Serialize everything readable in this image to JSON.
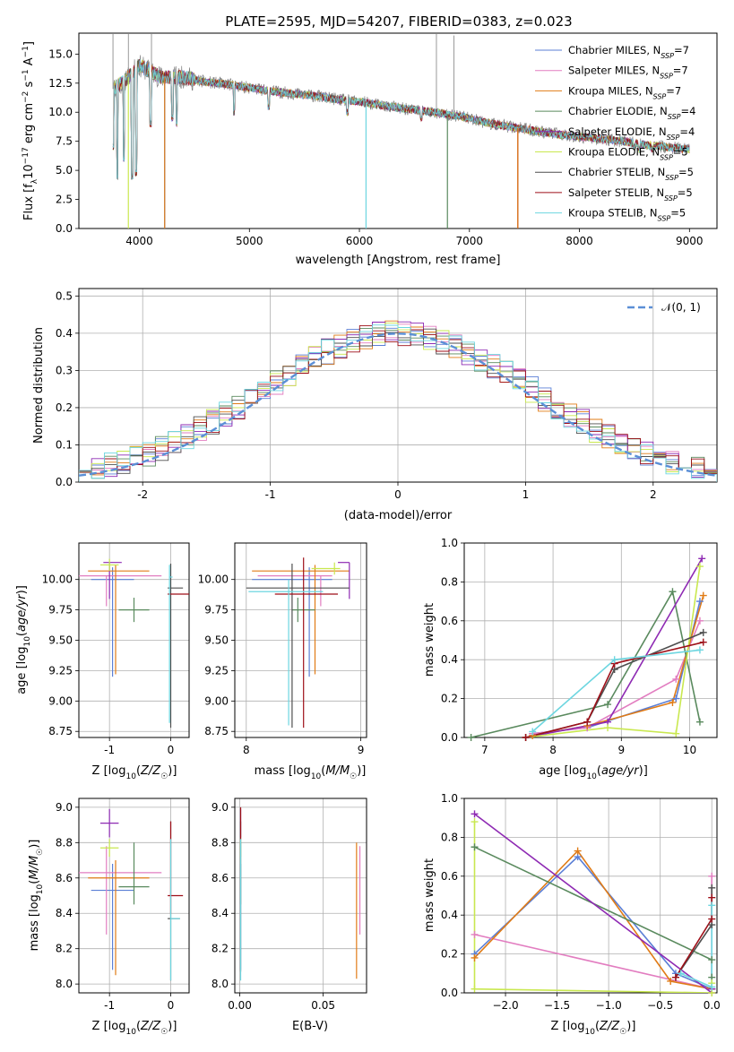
{
  "figure": {
    "title": "PLATE=2595, MJD=54207, FIBERID=0383, z=0.023"
  },
  "model_colors": [
    "#5b7fd6",
    "#e27dc0",
    "#e07b16",
    "#5a8a5e",
    "#8e2ab3",
    "#c9e84f",
    "#4f4f4f",
    "#9e0f18",
    "#6dd6e0"
  ],
  "legend": [
    {
      "base": "Chabrier MILES, N",
      "sub": "SSP",
      "eq": "=7"
    },
    {
      "base": "Salpeter MILES, N",
      "sub": "SSP",
      "eq": "=7"
    },
    {
      "base": "Kroupa MILES, N",
      "sub": "SSP",
      "eq": "=7"
    },
    {
      "base": "Chabrier ELODIE, N",
      "sub": "SSP",
      "eq": "=4"
    },
    {
      "base": "Salpeter ELODIE, N",
      "sub": "SSP",
      "eq": "=4"
    },
    {
      "base": "Kroupa ELODIE, N",
      "sub": "SSP",
      "eq": "=5"
    },
    {
      "base": "Chabrier STELIB, N",
      "sub": "SSP",
      "eq": "=5"
    },
    {
      "base": "Salpeter STELIB, N",
      "sub": "SSP",
      "eq": "=5"
    },
    {
      "base": "Kroupa STELIB, N",
      "sub": "SSP",
      "eq": "=5"
    }
  ],
  "chart_data": [
    {
      "id": "spectrum",
      "type": "line",
      "xlabel": "wavelength [Angstrom, rest frame]",
      "ylabel": "Flux [f_λ 10^-17 erg cm^-2 s^-1 A^-1]",
      "xlim": [
        3450,
        9250
      ],
      "ylim": [
        0,
        16.8
      ],
      "xticks": [
        4000,
        5000,
        6000,
        7000,
        8000,
        9000
      ],
      "yticks": [
        "0.0",
        "2.5",
        "5.0",
        "7.5",
        "10.0",
        "12.5",
        "15.0"
      ],
      "data_color": "#808080",
      "continuum_points": [
        [
          3760,
          12.0
        ],
        [
          3900,
          13.0
        ],
        [
          4000,
          14.0
        ],
        [
          4200,
          13.0
        ],
        [
          4400,
          13.0
        ],
        [
          4600,
          12.6
        ],
        [
          4800,
          12.4
        ],
        [
          5000,
          12.1
        ],
        [
          5200,
          11.8
        ],
        [
          5400,
          11.6
        ],
        [
          5600,
          11.4
        ],
        [
          5800,
          11.1
        ],
        [
          6000,
          10.9
        ],
        [
          6200,
          10.6
        ],
        [
          6400,
          10.3
        ],
        [
          6600,
          10.1
        ],
        [
          6800,
          9.8
        ],
        [
          7000,
          9.5
        ],
        [
          7200,
          9.0
        ],
        [
          7400,
          8.7
        ],
        [
          7600,
          8.4
        ],
        [
          7800,
          8.1
        ],
        [
          8000,
          7.9
        ],
        [
          8200,
          7.7
        ],
        [
          8400,
          7.5
        ],
        [
          8600,
          7.2
        ],
        [
          8800,
          7.0
        ],
        [
          9000,
          6.8
        ]
      ],
      "absorption_features": [
        [
          3760,
          7.0
        ],
        [
          3800,
          4.5
        ],
        [
          3860,
          6.0
        ],
        [
          3934,
          4.5
        ],
        [
          3970,
          4.8
        ],
        [
          4102,
          9.0
        ],
        [
          4300,
          9.5
        ],
        [
          4340,
          9.0
        ],
        [
          4861,
          10.0
        ],
        [
          5175,
          10.5
        ],
        [
          5890,
          10.0
        ],
        [
          6563,
          9.5
        ],
        [
          8500,
          7.0
        ],
        [
          8542,
          6.8
        ],
        [
          8662,
          6.8
        ]
      ],
      "emission_spikes": [
        [
          3760,
          16.8
        ],
        [
          3900,
          16.8
        ],
        [
          4110,
          16.8
        ],
        [
          6700,
          16.8
        ],
        [
          6860,
          16.6
        ]
      ],
      "model_drops": [
        [
          0,
          4230,
          0.0
        ],
        [
          2,
          4230,
          0.0
        ],
        [
          5,
          3900,
          0.0
        ],
        [
          8,
          6060,
          0.0
        ],
        [
          3,
          6800,
          0.0
        ],
        [
          7,
          7440,
          0.0
        ],
        [
          2,
          7440,
          0.0
        ]
      ],
      "legend_location": "upper right"
    },
    {
      "id": "residuals",
      "type": "histogram",
      "xlabel": "(data-model)/error",
      "ylabel": "Normed distribution",
      "xlim": [
        -2.5,
        2.5
      ],
      "ylim": [
        0,
        0.52
      ],
      "xticks": [
        -2,
        -1,
        0,
        1,
        2
      ],
      "yticks": [
        "0.0",
        "0.1",
        "0.2",
        "0.3",
        "0.4",
        "0.5"
      ],
      "bin_width": 0.1,
      "reference_label": "𝒩(0, 1)",
      "reference_color": "#5b8fd6",
      "legend_location": "upper right"
    },
    {
      "id": "age_vs_z",
      "type": "errorbar",
      "xlabel": "Z [log10(Z/Z☉)]",
      "ylabel": "age [log10(age/yr)]",
      "xlim": [
        -1.5,
        0.3
      ],
      "ylim": [
        8.7,
        10.3
      ],
      "xticks": [
        -1,
        0
      ],
      "yticks": [
        "8.75",
        "9.00",
        "9.25",
        "9.50",
        "9.75",
        "10.00"
      ],
      "points": [
        {
          "model": 0,
          "x": -0.95,
          "y": 10.0,
          "xerr": [
            0.35,
            0.35
          ],
          "yerr": [
            0.8,
            0.1
          ]
        },
        {
          "model": 1,
          "x": -1.05,
          "y": 10.03,
          "xerr": [
            0.5,
            0.9
          ],
          "yerr": [
            0.25,
            0.0
          ]
        },
        {
          "model": 2,
          "x": -0.9,
          "y": 10.07,
          "xerr": [
            0.45,
            0.55
          ],
          "yerr": [
            0.85,
            0.05
          ]
        },
        {
          "model": 3,
          "x": -0.6,
          "y": 9.75,
          "xerr": [
            0.25,
            0.25
          ],
          "yerr": [
            0.1,
            0.1
          ]
        },
        {
          "model": 4,
          "x": -1.0,
          "y": 10.14,
          "xerr": [
            0.1,
            0.2
          ],
          "yerr": [
            0.3,
            0.0
          ]
        },
        {
          "model": 5,
          "x": -1.0,
          "y": 10.12,
          "xerr": [
            0.15,
            0.15
          ],
          "yerr": [
            0.05,
            0.05
          ]
        },
        {
          "model": 6,
          "x": 0.0,
          "y": 9.93,
          "xerr": [
            0.05,
            0.2
          ],
          "yerr": [
            1.15,
            0.2
          ]
        },
        {
          "model": 7,
          "x": 0.0,
          "y": 9.88,
          "xerr": [
            0.05,
            0.3
          ],
          "yerr": [
            0.0,
            0.0
          ]
        },
        {
          "model": 8,
          "x": -0.02,
          "y": 10.02,
          "xerr": [
            0.0,
            0.05
          ],
          "yerr": [
            1.2,
            0.1
          ]
        }
      ]
    },
    {
      "id": "age_vs_mass",
      "type": "errorbar",
      "xlabel": "mass [log10(M/M☉)]",
      "ylabel": "",
      "xlim": [
        7.9,
        9.05
      ],
      "ylim": [
        8.7,
        10.3
      ],
      "xticks": [
        8,
        9
      ],
      "yticks": [
        "8.75",
        "9.00",
        "9.25",
        "9.50",
        "9.75",
        "10.00"
      ],
      "points": [
        {
          "model": 0,
          "x": 8.55,
          "y": 10.0,
          "xerr": [
            0.5,
            0.2
          ],
          "yerr": [
            0.8,
            0.1
          ]
        },
        {
          "model": 1,
          "x": 8.65,
          "y": 10.03,
          "xerr": [
            0.55,
            0.1
          ],
          "yerr": [
            0.25,
            0.0
          ]
        },
        {
          "model": 2,
          "x": 8.6,
          "y": 10.07,
          "xerr": [
            0.55,
            0.3
          ],
          "yerr": [
            0.85,
            0.05
          ]
        },
        {
          "model": 3,
          "x": 8.45,
          "y": 9.75,
          "xerr": [
            0.05,
            0.15
          ],
          "yerr": [
            0.1,
            0.1
          ]
        },
        {
          "model": 4,
          "x": 8.9,
          "y": 10.14,
          "xerr": [
            0.1,
            0.0
          ],
          "yerr": [
            0.3,
            0.0
          ]
        },
        {
          "model": 5,
          "x": 8.77,
          "y": 10.09,
          "xerr": [
            0.2,
            0.05
          ],
          "yerr": [
            0.05,
            0.05
          ]
        },
        {
          "model": 6,
          "x": 8.4,
          "y": 9.93,
          "xerr": [
            0.4,
            0.5
          ],
          "yerr": [
            1.15,
            0.2
          ]
        },
        {
          "model": 7,
          "x": 8.5,
          "y": 9.88,
          "xerr": [
            0.25,
            0.3
          ],
          "yerr": [
            1.1,
            0.3
          ]
        },
        {
          "model": 8,
          "x": 8.37,
          "y": 9.9,
          "xerr": [
            0.35,
            0.3
          ],
          "yerr": [
            1.1,
            0.1
          ]
        }
      ]
    },
    {
      "id": "weight_vs_age",
      "type": "line",
      "xlabel": "age [log10(age/yr)]",
      "ylabel": "mass weight",
      "xlim": [
        6.7,
        10.4
      ],
      "ylim": [
        0,
        1
      ],
      "xticks": [
        7,
        8,
        9,
        10
      ],
      "yticks": [
        "0.0",
        "0.2",
        "0.4",
        "0.6",
        "0.8",
        "1.0"
      ],
      "series": [
        {
          "model": 0,
          "x": [
            7.7,
            8.5,
            9.8,
            10.15
          ],
          "y": [
            0.02,
            0.05,
            0.2,
            0.7
          ]
        },
        {
          "model": 1,
          "x": [
            7.7,
            8.5,
            9.8,
            10.15
          ],
          "y": [
            0.02,
            0.05,
            0.3,
            0.6
          ]
        },
        {
          "model": 2,
          "x": [
            7.7,
            8.5,
            9.75,
            10.2
          ],
          "y": [
            0.01,
            0.06,
            0.18,
            0.73
          ]
        },
        {
          "model": 3,
          "x": [
            6.8,
            8.8,
            9.75,
            10.15
          ],
          "y": [
            0.0,
            0.17,
            0.75,
            0.08
          ]
        },
        {
          "model": 4,
          "x": [
            7.6,
            8.8,
            10.18
          ],
          "y": [
            0.0,
            0.08,
            0.92
          ]
        },
        {
          "model": 5,
          "x": [
            7.6,
            8.8,
            9.8,
            10.15
          ],
          "y": [
            0.0,
            0.05,
            0.02,
            0.88
          ]
        },
        {
          "model": 6,
          "x": [
            7.6,
            8.5,
            8.9,
            10.2
          ],
          "y": [
            0.0,
            0.08,
            0.35,
            0.54
          ]
        },
        {
          "model": 7,
          "x": [
            7.6,
            8.5,
            8.9,
            10.2
          ],
          "y": [
            0.0,
            0.08,
            0.38,
            0.49
          ]
        },
        {
          "model": 8,
          "x": [
            7.7,
            8.9,
            10.15
          ],
          "y": [
            0.03,
            0.4,
            0.45
          ]
        }
      ]
    },
    {
      "id": "mass_vs_z",
      "type": "errorbar",
      "xlabel": "Z [log10(Z/Z☉)]",
      "ylabel": "mass [log10(M/M☉)]",
      "xlim": [
        -1.5,
        0.3
      ],
      "ylim": [
        7.95,
        9.05
      ],
      "xticks": [
        -1,
        0
      ],
      "yticks": [
        "8.0",
        "8.2",
        "8.4",
        "8.6",
        "8.8",
        "9.0"
      ],
      "points": [
        {
          "model": 0,
          "x": -0.95,
          "y": 8.53,
          "xerr": [
            0.35,
            0.35
          ],
          "yerr": [
            0.45,
            0.15
          ]
        },
        {
          "model": 1,
          "x": -1.05,
          "y": 8.63,
          "xerr": [
            0.5,
            0.9
          ],
          "yerr": [
            0.35,
            0.15
          ]
        },
        {
          "model": 2,
          "x": -0.9,
          "y": 8.6,
          "xerr": [
            0.45,
            0.55
          ],
          "yerr": [
            0.55,
            0.1
          ]
        },
        {
          "model": 3,
          "x": -0.6,
          "y": 8.55,
          "xerr": [
            0.25,
            0.25
          ],
          "yerr": [
            0.1,
            0.25
          ]
        },
        {
          "model": 4,
          "x": -1.0,
          "y": 8.91,
          "xerr": [
            0.15,
            0.15
          ],
          "yerr": [
            0.08,
            0.08
          ]
        },
        {
          "model": 5,
          "x": -1.0,
          "y": 8.77,
          "xerr": [
            0.15,
            0.15
          ],
          "yerr": [
            0.05,
            0.05
          ]
        },
        {
          "model": 6,
          "x": 0.0,
          "y": 8.37,
          "xerr": [
            0.05,
            0.15
          ],
          "yerr": [
            0.35,
            0.55
          ]
        },
        {
          "model": 7,
          "x": 0.0,
          "y": 8.5,
          "xerr": [
            0.05,
            0.2
          ],
          "yerr": [
            0.1,
            0.42
          ]
        },
        {
          "model": 8,
          "x": 0.0,
          "y": 8.37,
          "xerr": [
            0.0,
            0.15
          ],
          "yerr": [
            0.35,
            0.45
          ]
        }
      ]
    },
    {
      "id": "mass_vs_ebv",
      "type": "errorbar",
      "xlabel": "E(B-V)",
      "ylabel": "",
      "xlim": [
        -0.003,
        0.076
      ],
      "ylim": [
        7.95,
        9.05
      ],
      "xticks": [
        "0.00",
        "0.05"
      ],
      "tick_values": [
        0.0,
        0.05
      ],
      "yticks": [
        "8.0",
        "8.2",
        "8.4",
        "8.6",
        "8.8",
        "9.0"
      ],
      "points": [
        {
          "model": 0,
          "x": 0.0005,
          "y": 8.53,
          "xerr": [
            0,
            0
          ],
          "yerr": [
            0.45,
            0.15
          ]
        },
        {
          "model": 1,
          "x": 0.072,
          "y": 8.6,
          "xerr": [
            0,
            0
          ],
          "yerr": [
            0.32,
            0.18
          ]
        },
        {
          "model": 2,
          "x": 0.07,
          "y": 8.45,
          "xerr": [
            0,
            0
          ],
          "yerr": [
            0.42,
            0.35
          ]
        },
        {
          "model": 3,
          "x": 0.0005,
          "y": 8.55,
          "xerr": [
            0,
            0
          ],
          "yerr": [
            0.1,
            0.25
          ]
        },
        {
          "model": 4,
          "x": 0.0005,
          "y": 8.91,
          "xerr": [
            0,
            0
          ],
          "yerr": [
            0.08,
            0.08
          ]
        },
        {
          "model": 5,
          "x": 0.0005,
          "y": 8.77,
          "xerr": [
            0,
            0
          ],
          "yerr": [
            0.05,
            0.05
          ]
        },
        {
          "model": 6,
          "x": 0.0005,
          "y": 8.37,
          "xerr": [
            0,
            0
          ],
          "yerr": [
            0.3,
            0.55
          ]
        },
        {
          "model": 7,
          "x": 0.0005,
          "y": 8.9,
          "xerr": [
            0,
            0
          ],
          "yerr": [
            0.08,
            0.1
          ]
        },
        {
          "model": 8,
          "x": 0.0005,
          "y": 8.37,
          "xerr": [
            0,
            0
          ],
          "yerr": [
            0.35,
            0.45
          ]
        }
      ]
    },
    {
      "id": "weight_vs_z",
      "type": "line",
      "xlabel": "Z [log10(Z/Z☉)]",
      "ylabel": "mass weight",
      "xlim": [
        -2.4,
        0.05
      ],
      "ylim": [
        0,
        1
      ],
      "xticks": [
        "−2.0",
        "−1.5",
        "−1.0",
        "−0.5",
        "0.0"
      ],
      "tick_values": [
        -2.0,
        -1.5,
        -1.0,
        -0.5,
        0.0
      ],
      "yticks": [
        "0.0",
        "0.2",
        "0.4",
        "0.6",
        "0.8",
        "1.0"
      ],
      "series": [
        {
          "model": 0,
          "x": [
            -2.3,
            -1.3,
            -0.35,
            0.0
          ],
          "y": [
            0.2,
            0.7,
            0.1,
            0.02
          ]
        },
        {
          "model": 1,
          "x": [
            -2.3,
            0.0,
            0.0
          ],
          "y": [
            0.3,
            0.02,
            0.6
          ]
        },
        {
          "model": 2,
          "x": [
            -2.3,
            -1.3,
            -0.4,
            0.0
          ],
          "y": [
            0.18,
            0.73,
            0.06,
            0.02
          ]
        },
        {
          "model": 3,
          "x": [
            -2.3,
            0.0,
            0.0
          ],
          "y": [
            0.75,
            0.17,
            0.08
          ]
        },
        {
          "model": 4,
          "x": [
            -2.3,
            0.0,
            0.0
          ],
          "y": [
            0.92,
            0.0,
            0.02
          ]
        },
        {
          "model": 5,
          "x": [
            -2.3,
            -2.3,
            0.0,
            0.0
          ],
          "y": [
            0.88,
            0.02,
            0.0,
            0.05
          ]
        },
        {
          "model": 6,
          "x": [
            -0.35,
            0.0,
            0.0
          ],
          "y": [
            0.08,
            0.35,
            0.54
          ]
        },
        {
          "model": 7,
          "x": [
            -0.35,
            0.0,
            0.0
          ],
          "y": [
            0.08,
            0.38,
            0.49
          ]
        },
        {
          "model": 8,
          "x": [
            -0.3,
            0.0,
            0.0
          ],
          "y": [
            0.1,
            0.03,
            0.45
          ]
        }
      ]
    }
  ]
}
